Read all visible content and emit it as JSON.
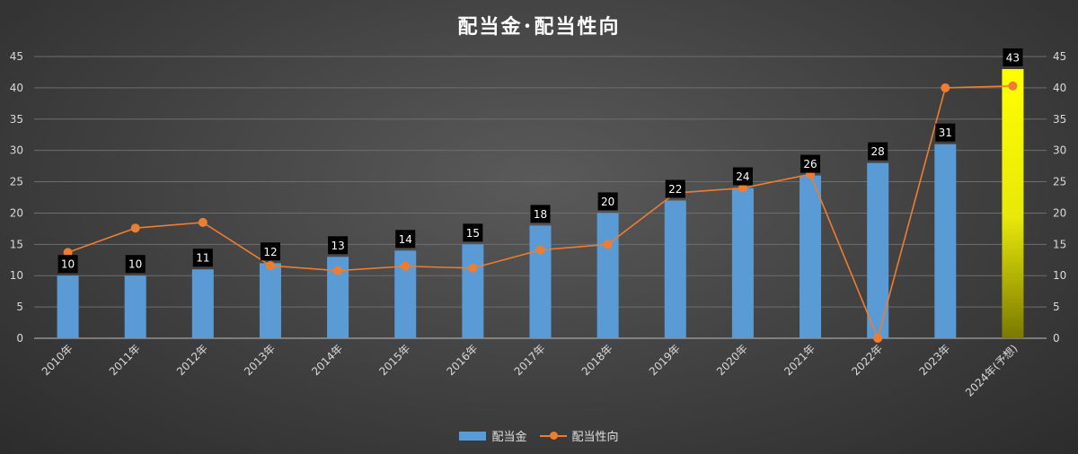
{
  "chart_data": {
    "type": "bar",
    "title": "配当金･配当性向",
    "categories": [
      "2010年",
      "2011年",
      "2012年",
      "2013年",
      "2014年",
      "2015年",
      "2016年",
      "2017年",
      "2018年",
      "2019年",
      "2020年",
      "2021年",
      "2022年",
      "2023年",
      "2024年(予想)"
    ],
    "series": [
      {
        "name": "配当金",
        "type": "bar",
        "color": "#5b9bd5",
        "highlight_color": "#ffff00",
        "highlight_index": 14,
        "values": [
          10,
          10,
          11,
          12,
          13,
          14,
          15,
          18,
          20,
          22,
          24,
          26,
          28,
          31,
          43
        ]
      },
      {
        "name": "配当性向",
        "type": "line",
        "color": "#ed7d31",
        "values": [
          13.7,
          17.6,
          18.5,
          11.6,
          10.8,
          11.5,
          11.2,
          14.1,
          15.0,
          23.2,
          24.0,
          26.2,
          0,
          40.0,
          40.3
        ]
      }
    ],
    "ylim_left": [
      0,
      45
    ],
    "ylim_right": [
      0,
      45
    ],
    "yticks": [
      0,
      5,
      10,
      15,
      20,
      25,
      30,
      35,
      40,
      45
    ],
    "grid": true,
    "legend_position": "bottom"
  }
}
